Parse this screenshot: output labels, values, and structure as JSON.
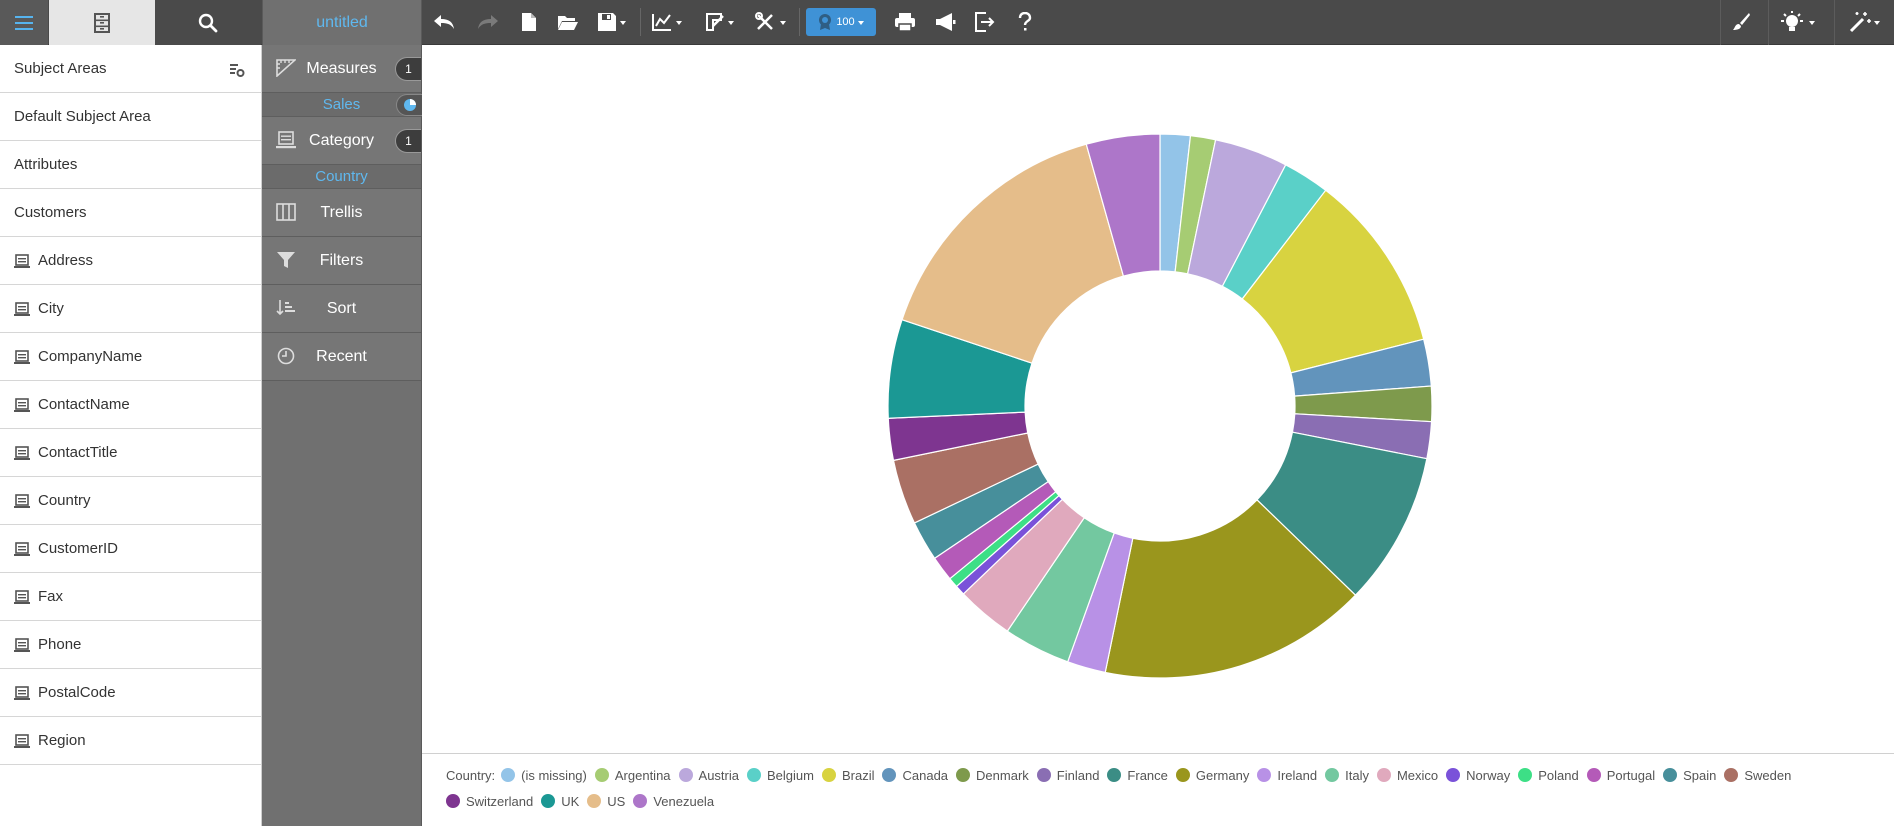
{
  "toolbar": {
    "doc_title": "untitled",
    "zoom_value": "100"
  },
  "sidebar": {
    "items": [
      {
        "label": "Subject Areas",
        "icon": "subject-area-settings-icon",
        "kind": "header"
      },
      {
        "label": "Default Subject Area",
        "icon": "",
        "kind": "plain"
      },
      {
        "label": "Attributes",
        "icon": "",
        "kind": "plain"
      },
      {
        "label": "Customers",
        "icon": "",
        "kind": "plain"
      },
      {
        "label": "Address",
        "icon": "dimension-icon",
        "kind": "field"
      },
      {
        "label": "City",
        "icon": "dimension-icon",
        "kind": "field"
      },
      {
        "label": "CompanyName",
        "icon": "dimension-icon",
        "kind": "field"
      },
      {
        "label": "ContactName",
        "icon": "dimension-icon",
        "kind": "field"
      },
      {
        "label": "ContactTitle",
        "icon": "dimension-icon",
        "kind": "field"
      },
      {
        "label": "Country",
        "icon": "dimension-icon",
        "kind": "field"
      },
      {
        "label": "CustomerID",
        "icon": "dimension-icon",
        "kind": "field"
      },
      {
        "label": "Fax",
        "icon": "dimension-icon",
        "kind": "field"
      },
      {
        "label": "Phone",
        "icon": "dimension-icon",
        "kind": "field"
      },
      {
        "label": "PostalCode",
        "icon": "dimension-icon",
        "kind": "field"
      },
      {
        "label": "Region",
        "icon": "dimension-icon",
        "kind": "field"
      }
    ]
  },
  "panel": {
    "measures_label": "Measures",
    "measures_count": "1",
    "measures_field": "Sales",
    "category_label": "Category",
    "category_count": "1",
    "category_field": "Country",
    "trellis_label": "Trellis",
    "filters_label": "Filters",
    "sort_label": "Sort",
    "recent_label": "Recent"
  },
  "legend": {
    "title": "Country:"
  },
  "chart_data": {
    "type": "pie",
    "subtype": "donut",
    "title": "",
    "measure": "Sales",
    "dimension": "Country",
    "categories": [
      "(is missing)",
      "Argentina",
      "Austria",
      "Belgium",
      "Brazil",
      "Canada",
      "Denmark",
      "Finland",
      "France",
      "Germany",
      "Ireland",
      "Italy",
      "Mexico",
      "Norway",
      "Poland",
      "Portugal",
      "Spain",
      "Sweden",
      "Switzerland",
      "UK",
      "US",
      "Venezuela"
    ],
    "values": [
      1.8,
      1.5,
      4.4,
      2.8,
      10.7,
      2.8,
      2.1,
      2.2,
      9.2,
      16.1,
      2.3,
      4.0,
      3.4,
      0.6,
      0.6,
      1.5,
      2.4,
      3.9,
      2.5,
      5.9,
      15.6,
      4.4
    ],
    "colors": [
      "#93c4e8",
      "#a6cc73",
      "#bba8dc",
      "#5ad0c8",
      "#d8d340",
      "#6294bc",
      "#7e9a4c",
      "#8a6eb3",
      "#3b8d85",
      "#9a961d",
      "#b891e6",
      "#73c8a0",
      "#e0a9bd",
      "#7a52d9",
      "#3ddf86",
      "#b45ab8",
      "#478f9b",
      "#aa7064",
      "#7e3590",
      "#1b9894",
      "#e5bd8a",
      "#ad76c9"
    ],
    "legend_position": "bottom"
  }
}
